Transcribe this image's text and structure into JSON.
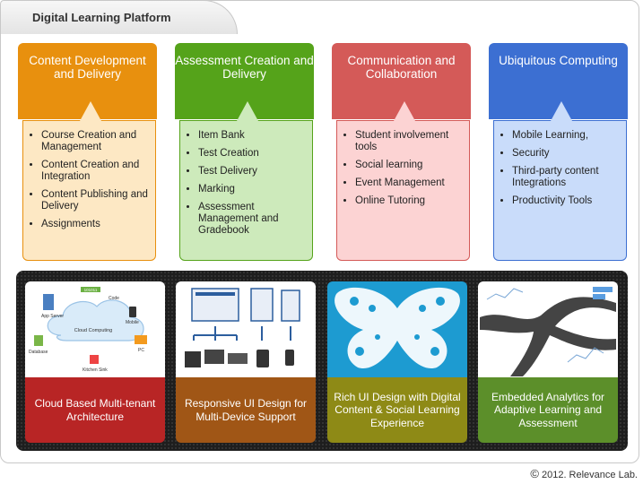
{
  "header": {
    "title": "Digital Learning Platform"
  },
  "columns": [
    {
      "title": "Content Development and Delivery",
      "head_color": "#e8900e",
      "body_color": "#fde8c4",
      "items": [
        "Course Creation and Management",
        "Content Creation and Integration",
        "Content Publishing and Delivery",
        "Assignments"
      ]
    },
    {
      "title": "Assessment Creation and Delivery",
      "head_color": "#55a31a",
      "body_color": "#cdeabb",
      "items": [
        "Item Bank",
        "Test Creation",
        "Test Delivery",
        "Marking",
        "Assessment Management and Gradebook"
      ]
    },
    {
      "title": "Communication and Collaboration",
      "head_color": "#d45a58",
      "body_color": "#fcd3d3",
      "items": [
        "Student involvement tools",
        "Social learning",
        "Event Management",
        "Online Tutoring"
      ]
    },
    {
      "title": "Ubiquitous Computing",
      "head_color": "#3c6fd2",
      "body_color": "#c9dcfa",
      "items": [
        "Mobile Learning,",
        "Security",
        "Third-party content Integrations",
        "Productivity Tools"
      ]
    }
  ],
  "cards": [
    {
      "caption": "Cloud Based Multi-tenant Architecture",
      "color": "#b82525",
      "img_labels": [
        "101011",
        "Code",
        "App Server",
        "Mobile",
        "Cloud Computing",
        "Database",
        "PC",
        "Kitchen Sink"
      ]
    },
    {
      "caption": "Responsive UI Design for Multi-Device Support",
      "color": "#a05616"
    },
    {
      "caption": "Rich UI Design with Digital Content & Social Learning Experience",
      "color": "#8e8a16"
    },
    {
      "caption": "Embedded  Analytics for Adaptive  Learning and Assessment",
      "color": "#5c8f2a"
    }
  ],
  "footer": {
    "copyright": "2012. Relevance Lab."
  }
}
